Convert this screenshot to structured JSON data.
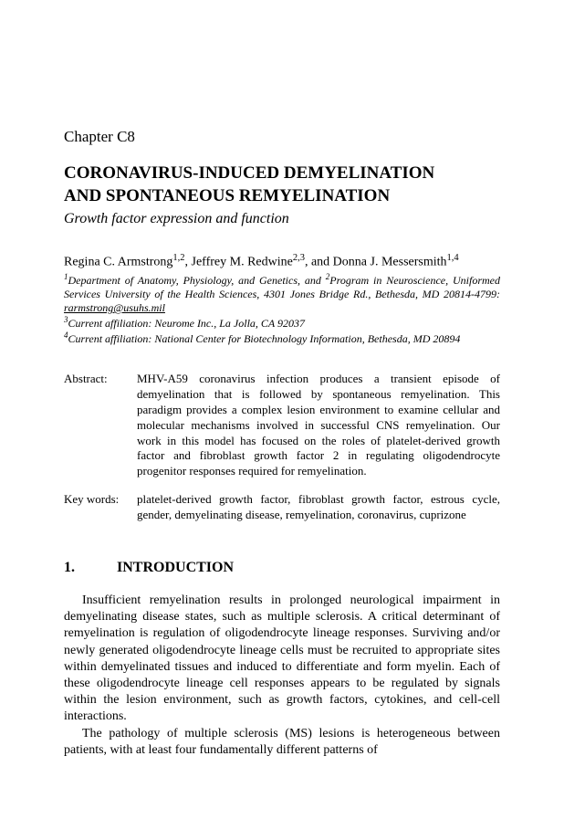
{
  "chapter_label": "Chapter  C8",
  "title_line1": "CORONAVIRUS-INDUCED DEMYELINATION",
  "title_line2": "AND SPONTANEOUS REMYELINATION",
  "subtitle": "Growth factor expression and function",
  "authors_html": "Regina C. Armstrong<sup>1,2</sup>, Jeffrey M. Redwine<sup>2,3</sup>, and Donna J. Messersmith<sup>1,4</sup>",
  "affiliations_html": "<sup>1</sup>Department of Anatomy, Physiology, and Genetics, and <sup>2</sup>Program in Neuroscience, Uniformed Services University of the Health Sciences, 4301 Jones Bridge Rd., Bethesda, MD 20814-4799: <span class=\"underline\">rarmstrong@usuhs.mil</span><br><sup>3</sup>Current affiliation: Neurome Inc., La Jolla, CA 92037<br><sup>4</sup>Current affiliation: National Center for Biotechnology Information, Bethesda, MD 20894",
  "abstract_label": "Abstract:",
  "abstract_text": "MHV-A59 coronavirus infection produces a transient episode of demyelination that is followed by spontaneous remyelination. This paradigm provides a complex lesion environment to examine cellular and molecular mechanisms involved in successful CNS remyelination.  Our work in this model has focused on the roles of platelet-derived growth factor and fibroblast growth factor 2 in regulating oligodendrocyte progenitor responses required for remyelination.",
  "keywords_label": "Key words:",
  "keywords_text": "platelet-derived growth factor, fibroblast growth factor, estrous cycle, gender, demyelinating disease, remyelination, coronavirus, cuprizone",
  "section_number": "1.",
  "section_title": "INTRODUCTION",
  "para1": "Insufficient remyelination results in prolonged neurological impairment in demyelinating disease states, such as multiple sclerosis. A critical determinant of remyelination is regulation of oligodendrocyte lineage responses. Surviving and/or newly generated oligodendrocyte lineage cells must be recruited to appropriate sites within demyelinated tissues and induced to differentiate and form myelin. Each of these oligodendrocyte lineage cell responses appears to be regulated by signals within the lesion environment, such as growth factors, cytokines, and cell-cell interactions.",
  "para2": "The pathology of multiple sclerosis (MS) lesions is heterogeneous between patients, with at least four fundamentally different patterns of"
}
